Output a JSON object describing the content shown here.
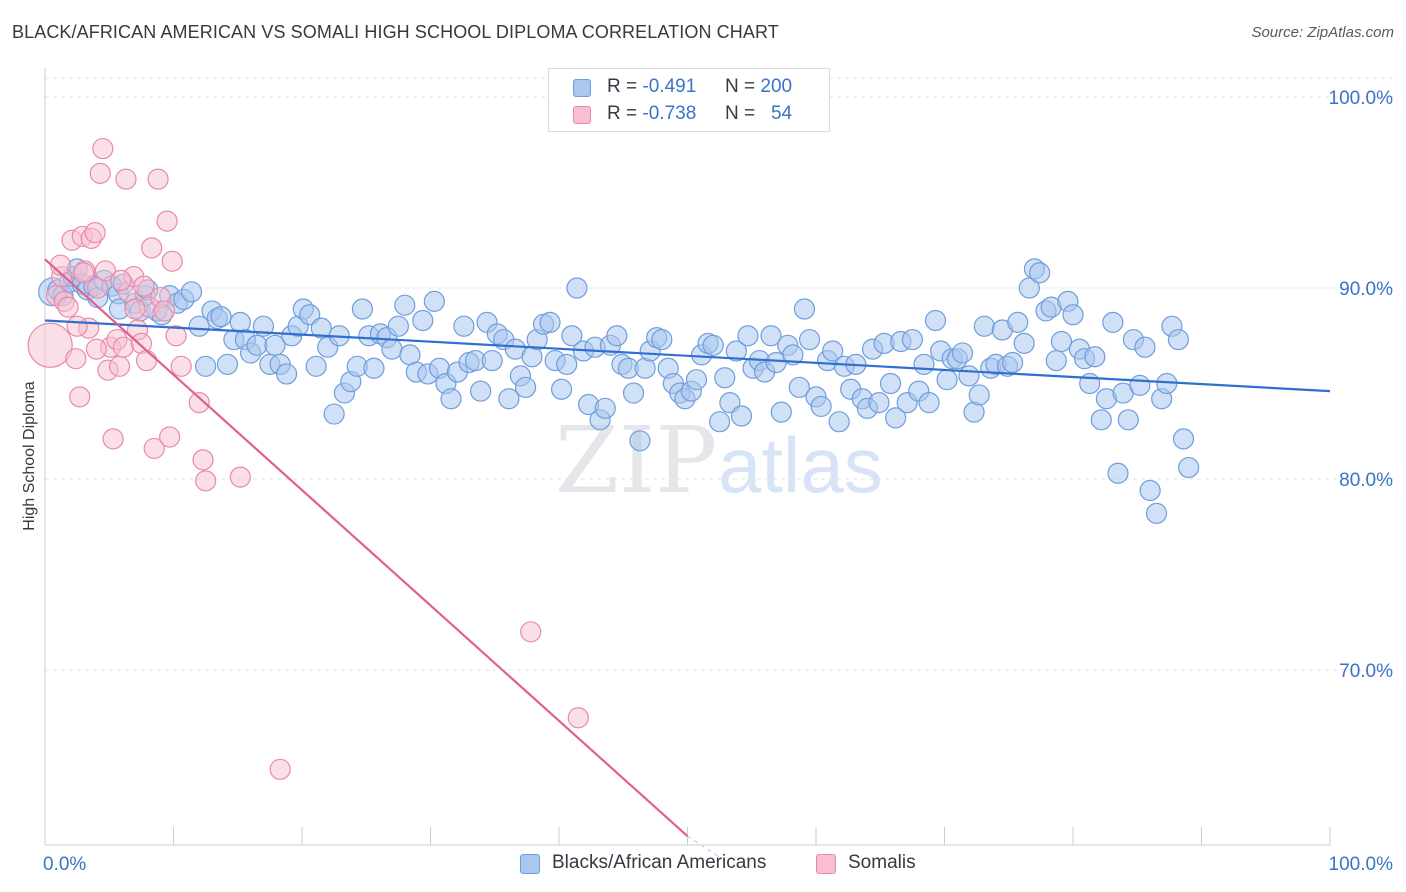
{
  "title": "BLACK/AFRICAN AMERICAN VS SOMALI HIGH SCHOOL DIPLOMA CORRELATION CHART",
  "source": "Source: ZipAtlas.com",
  "watermark": {
    "part1": "ZIP",
    "part2": "atlas"
  },
  "legend": {
    "rows": [
      {
        "r_label": "R =",
        "r_value": "-0.491",
        "n_label": "N =",
        "n_value": "200",
        "color": "#a9c7ef",
        "border": "#6e9edb"
      },
      {
        "r_label": "R =",
        "r_value": "-0.738",
        "n_label": "N =",
        "n_value": "54",
        "color": "#f7bfd0",
        "border": "#e88aaa"
      }
    ]
  },
  "bottom_legend": [
    {
      "label": "Blacks/African Americans",
      "color": "#a9c7ef",
      "border": "#6e9edb"
    },
    {
      "label": "Somalis",
      "color": "#f7bfd0",
      "border": "#e88aaa"
    }
  ],
  "chart_data": {
    "type": "scatter",
    "title": "BLACK/AFRICAN AMERICAN VS SOMALI HIGH SCHOOL DIPLOMA CORRELATION CHART",
    "xlabel": "",
    "ylabel": "High School Diploma",
    "xlim": [
      0,
      100
    ],
    "ylim": [
      60.5,
      102
    ],
    "x_tick_labels": [
      "0.0%",
      "100.0%"
    ],
    "y_ticks": [
      {
        "value": 100,
        "label": "100.0%"
      },
      {
        "value": 90,
        "label": "90.0%"
      },
      {
        "value": 80,
        "label": "80.0%"
      },
      {
        "value": 70,
        "label": "70.0%"
      }
    ],
    "grid": "dashed horizontal",
    "legend_position": "top-center",
    "series": [
      {
        "name": "Blacks/African Americans",
        "color": "#a9c7ef",
        "stroke": "#6e9edb",
        "trend_color": "#2f6fcf",
        "trend": {
          "x0": 0,
          "y0": 88.3,
          "x1": 100,
          "y1": 84.6
        },
        "points": [
          [
            0.6,
            89.8
          ],
          [
            1.0,
            89.9
          ],
          [
            1.4,
            89.6
          ],
          [
            1.9,
            90.3
          ],
          [
            2.2,
            90.6
          ],
          [
            2.5,
            91.0
          ],
          [
            2.9,
            90.2
          ],
          [
            3.3,
            89.9
          ],
          [
            3.8,
            90.1
          ],
          [
            4.1,
            89.5
          ],
          [
            4.6,
            90.4
          ],
          [
            5.2,
            90.1
          ],
          [
            5.7,
            89.7
          ],
          [
            6.1,
            90.2
          ],
          [
            5.8,
            88.9
          ],
          [
            7.0,
            89.2
          ],
          [
            7.4,
            88.8
          ],
          [
            7.8,
            89.6
          ],
          [
            8.0,
            89.9
          ],
          [
            8.7,
            88.8
          ],
          [
            9.1,
            88.6
          ],
          [
            9.7,
            89.6
          ],
          [
            10.3,
            89.2
          ],
          [
            10.8,
            89.4
          ],
          [
            11.4,
            89.8
          ],
          [
            12.0,
            88.0
          ],
          [
            12.5,
            85.9
          ],
          [
            13.0,
            88.8
          ],
          [
            13.4,
            88.4
          ],
          [
            13.7,
            88.5
          ],
          [
            14.2,
            86.0
          ],
          [
            14.7,
            87.3
          ],
          [
            15.2,
            88.2
          ],
          [
            15.6,
            87.3
          ],
          [
            16.0,
            86.6
          ],
          [
            16.5,
            87.0
          ],
          [
            17.0,
            88.0
          ],
          [
            17.5,
            86.0
          ],
          [
            17.9,
            87.0
          ],
          [
            18.3,
            86.0
          ],
          [
            18.8,
            85.5
          ],
          [
            19.2,
            87.5
          ],
          [
            19.7,
            88.0
          ],
          [
            20.1,
            88.9
          ],
          [
            20.6,
            88.6
          ],
          [
            21.1,
            85.9
          ],
          [
            21.5,
            87.9
          ],
          [
            22.0,
            86.9
          ],
          [
            22.5,
            83.4
          ],
          [
            22.9,
            87.5
          ],
          [
            23.3,
            84.5
          ],
          [
            23.8,
            85.1
          ],
          [
            24.3,
            85.9
          ],
          [
            24.7,
            88.9
          ],
          [
            25.2,
            87.5
          ],
          [
            25.6,
            85.8
          ],
          [
            26.1,
            87.6
          ],
          [
            26.6,
            87.4
          ],
          [
            27.0,
            86.8
          ],
          [
            27.5,
            88.0
          ],
          [
            28.0,
            89.1
          ],
          [
            28.4,
            86.5
          ],
          [
            28.9,
            85.6
          ],
          [
            29.4,
            88.3
          ],
          [
            29.8,
            85.5
          ],
          [
            30.3,
            89.3
          ],
          [
            30.7,
            85.8
          ],
          [
            31.2,
            85.0
          ],
          [
            31.6,
            84.2
          ],
          [
            32.1,
            85.6
          ],
          [
            32.6,
            88.0
          ],
          [
            33.0,
            86.1
          ],
          [
            33.5,
            86.2
          ],
          [
            33.9,
            84.6
          ],
          [
            34.4,
            88.2
          ],
          [
            34.8,
            86.2
          ],
          [
            35.2,
            87.6
          ],
          [
            35.7,
            87.3
          ],
          [
            36.1,
            84.2
          ],
          [
            36.6,
            86.8
          ],
          [
            37.0,
            85.4
          ],
          [
            37.4,
            84.8
          ],
          [
            37.9,
            86.4
          ],
          [
            38.3,
            87.3
          ],
          [
            38.8,
            88.1
          ],
          [
            39.3,
            88.2
          ],
          [
            39.7,
            86.2
          ],
          [
            40.2,
            84.7
          ],
          [
            40.6,
            86.0
          ],
          [
            41.0,
            87.5
          ],
          [
            41.4,
            90.0
          ],
          [
            41.9,
            86.7
          ],
          [
            42.3,
            83.9
          ],
          [
            42.8,
            86.9
          ],
          [
            43.2,
            83.1
          ],
          [
            43.6,
            83.7
          ],
          [
            44.0,
            87.0
          ],
          [
            44.5,
            87.5
          ],
          [
            44.9,
            86.0
          ],
          [
            45.4,
            85.8
          ],
          [
            45.8,
            84.5
          ],
          [
            46.3,
            82.0
          ],
          [
            46.7,
            85.8
          ],
          [
            47.1,
            86.7
          ],
          [
            47.6,
            87.4
          ],
          [
            48.0,
            87.3
          ],
          [
            48.5,
            85.8
          ],
          [
            48.9,
            85.0
          ],
          [
            49.4,
            84.5
          ],
          [
            49.8,
            84.2
          ],
          [
            50.3,
            84.6
          ],
          [
            50.7,
            85.2
          ],
          [
            51.1,
            86.5
          ],
          [
            51.6,
            87.1
          ],
          [
            52.0,
            87.0
          ],
          [
            52.5,
            83.0
          ],
          [
            52.9,
            85.3
          ],
          [
            53.3,
            84.0
          ],
          [
            53.8,
            86.7
          ],
          [
            54.2,
            83.3
          ],
          [
            54.7,
            87.5
          ],
          [
            55.1,
            85.8
          ],
          [
            55.6,
            86.2
          ],
          [
            56.0,
            85.6
          ],
          [
            56.5,
            87.5
          ],
          [
            56.9,
            86.1
          ],
          [
            57.3,
            83.5
          ],
          [
            57.8,
            87.0
          ],
          [
            58.2,
            86.5
          ],
          [
            58.7,
            84.8
          ],
          [
            59.1,
            88.9
          ],
          [
            59.5,
            87.3
          ],
          [
            60.0,
            84.3
          ],
          [
            60.4,
            83.8
          ],
          [
            60.9,
            86.2
          ],
          [
            61.3,
            86.7
          ],
          [
            61.8,
            83.0
          ],
          [
            62.2,
            85.9
          ],
          [
            62.7,
            84.7
          ],
          [
            63.1,
            86.0
          ],
          [
            63.6,
            84.2
          ],
          [
            64.0,
            83.7
          ],
          [
            64.4,
            86.8
          ],
          [
            64.9,
            84.0
          ],
          [
            65.3,
            87.1
          ],
          [
            65.8,
            85.0
          ],
          [
            66.2,
            83.2
          ],
          [
            66.6,
            87.2
          ],
          [
            67.1,
            84.0
          ],
          [
            67.5,
            87.3
          ],
          [
            68.0,
            84.6
          ],
          [
            68.4,
            86.0
          ],
          [
            68.8,
            84.0
          ],
          [
            69.3,
            88.3
          ],
          [
            69.7,
            86.7
          ],
          [
            70.2,
            85.2
          ],
          [
            70.6,
            86.3
          ],
          [
            71.0,
            86.3
          ],
          [
            71.4,
            86.6
          ],
          [
            71.9,
            85.4
          ],
          [
            72.3,
            83.5
          ],
          [
            72.7,
            84.4
          ],
          [
            73.1,
            88.0
          ],
          [
            73.6,
            85.8
          ],
          [
            74.0,
            86.0
          ],
          [
            74.5,
            87.8
          ],
          [
            74.9,
            85.9
          ],
          [
            75.3,
            86.1
          ],
          [
            75.7,
            88.2
          ],
          [
            76.2,
            87.1
          ],
          [
            76.6,
            90.0
          ],
          [
            77.0,
            91.0
          ],
          [
            77.4,
            90.8
          ],
          [
            77.9,
            88.8
          ],
          [
            78.3,
            89.0
          ],
          [
            78.7,
            86.2
          ],
          [
            79.1,
            87.2
          ],
          [
            79.6,
            89.3
          ],
          [
            80.0,
            88.6
          ],
          [
            80.5,
            86.8
          ],
          [
            80.9,
            86.3
          ],
          [
            81.3,
            85.0
          ],
          [
            81.7,
            86.4
          ],
          [
            82.2,
            83.1
          ],
          [
            82.6,
            84.2
          ],
          [
            83.1,
            88.2
          ],
          [
            83.5,
            80.3
          ],
          [
            83.9,
            84.5
          ],
          [
            84.3,
            83.1
          ],
          [
            84.7,
            87.3
          ],
          [
            85.2,
            84.9
          ],
          [
            85.6,
            86.9
          ],
          [
            86.0,
            79.4
          ],
          [
            86.5,
            78.2
          ],
          [
            86.9,
            84.2
          ],
          [
            87.3,
            85.0
          ],
          [
            87.7,
            88.0
          ],
          [
            88.2,
            87.3
          ],
          [
            88.6,
            82.1
          ],
          [
            89.0,
            80.6
          ]
        ],
        "point_sizes_note": "larger marker near x=0"
      },
      {
        "name": "Somalis",
        "color": "#f7bfd0",
        "stroke": "#e88aaa",
        "trend_color": "#e0608e",
        "trend": {
          "x0": 0,
          "y0": 91.5,
          "x1": 50,
          "y1": 61.3,
          "dashed_to_x": 52.5,
          "dashed_to_y": 60.2
        },
        "points": [
          [
            0.4,
            87.0
          ],
          [
            0.9,
            89.6
          ],
          [
            1.3,
            90.6
          ],
          [
            1.5,
            89.3
          ],
          [
            1.8,
            89.0
          ],
          [
            2.1,
            92.5
          ],
          [
            2.4,
            86.3
          ],
          [
            2.7,
            84.3
          ],
          [
            2.9,
            92.7
          ],
          [
            3.1,
            90.9
          ],
          [
            3.4,
            87.9
          ],
          [
            3.6,
            92.6
          ],
          [
            3.9,
            92.9
          ],
          [
            4.1,
            90.0
          ],
          [
            4.3,
            96.0
          ],
          [
            4.5,
            97.3
          ],
          [
            4.7,
            90.9
          ],
          [
            4.9,
            85.7
          ],
          [
            5.1,
            86.9
          ],
          [
            5.3,
            82.1
          ],
          [
            5.6,
            87.3
          ],
          [
            5.8,
            85.9
          ],
          [
            6.1,
            86.9
          ],
          [
            6.3,
            95.7
          ],
          [
            6.5,
            89.8
          ],
          [
            6.9,
            90.6
          ],
          [
            7.2,
            87.8
          ],
          [
            7.5,
            87.1
          ],
          [
            7.7,
            90.1
          ],
          [
            7.9,
            86.2
          ],
          [
            8.1,
            89.0
          ],
          [
            8.3,
            92.1
          ],
          [
            8.5,
            81.6
          ],
          [
            8.8,
            95.7
          ],
          [
            9.0,
            89.5
          ],
          [
            9.3,
            88.8
          ],
          [
            9.5,
            93.5
          ],
          [
            9.7,
            82.2
          ],
          [
            9.9,
            91.4
          ],
          [
            10.2,
            87.5
          ],
          [
            10.6,
            85.9
          ],
          [
            12.0,
            84.0
          ],
          [
            12.3,
            81.0
          ],
          [
            12.5,
            79.9
          ],
          [
            15.2,
            80.1
          ],
          [
            18.3,
            64.8
          ],
          [
            37.8,
            72.0
          ],
          [
            41.5,
            67.5
          ],
          [
            1.2,
            91.2
          ],
          [
            3.0,
            90.8
          ],
          [
            5.9,
            90.4
          ],
          [
            7.0,
            88.9
          ],
          [
            2.5,
            88.0
          ],
          [
            4.0,
            86.8
          ]
        ]
      }
    ]
  }
}
